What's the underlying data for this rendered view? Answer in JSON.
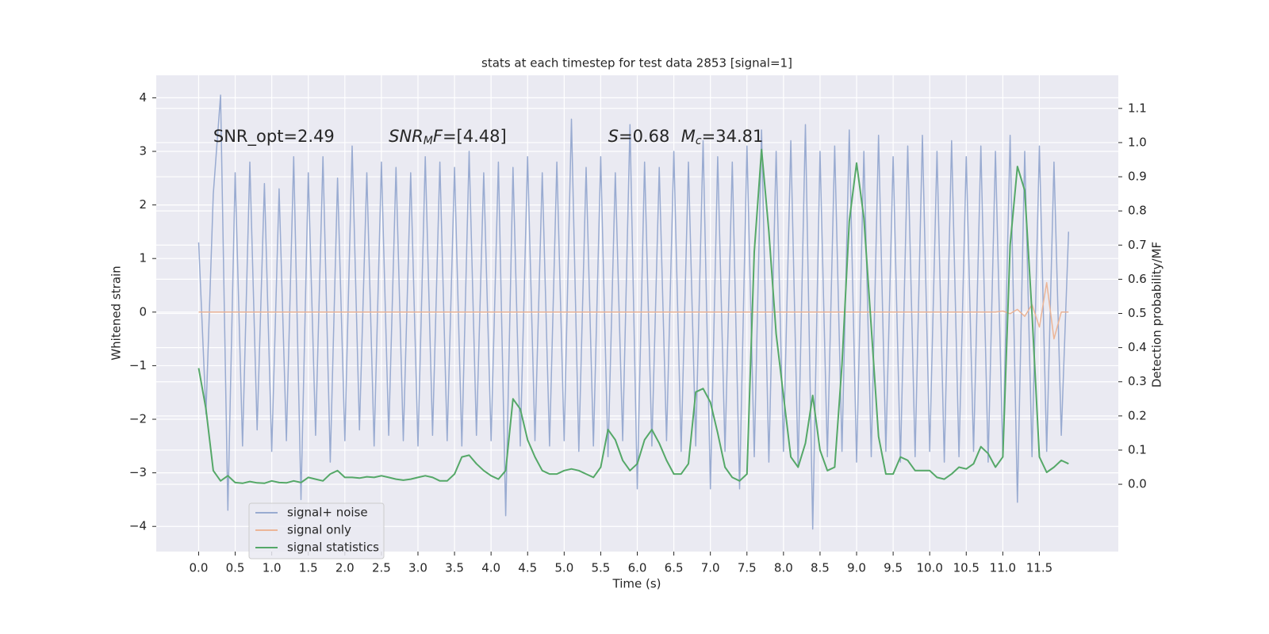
{
  "chart_data": {
    "type": "line",
    "title": "stats at each timestep for test data 2853 [signal=1]",
    "xlabel": "Time (s)",
    "ylabel": "Whitened strain",
    "y2label": "Detection probability/MF",
    "grid": true,
    "legend": "lower left",
    "xlim": [
      -0.58,
      12.58
    ],
    "ylim": [
      -4.47,
      4.42
    ],
    "y2lim": [
      -0.197,
      1.197
    ],
    "xticks": [
      {
        "value": 0,
        "label": "0.0"
      },
      {
        "value": 0.5,
        "label": "0.5"
      },
      {
        "value": 1,
        "label": "1.0"
      },
      {
        "value": 1.5,
        "label": "1.5"
      },
      {
        "value": 2,
        "label": "2.0"
      },
      {
        "value": 2.5,
        "label": "2.5"
      },
      {
        "value": 3,
        "label": "3.0"
      },
      {
        "value": 3.5,
        "label": "3.5"
      },
      {
        "value": 4,
        "label": "4.0"
      },
      {
        "value": 4.5,
        "label": "4.5"
      },
      {
        "value": 5,
        "label": "5.0"
      },
      {
        "value": 5.5,
        "label": "5.5"
      },
      {
        "value": 6,
        "label": "6.0"
      },
      {
        "value": 6.5,
        "label": "6.5"
      },
      {
        "value": 7,
        "label": "7.0"
      },
      {
        "value": 7.5,
        "label": "7.5"
      },
      {
        "value": 8,
        "label": "8.0"
      },
      {
        "value": 8.5,
        "label": "8.5"
      },
      {
        "value": 9,
        "label": "9.0"
      },
      {
        "value": 9.5,
        "label": "9.5"
      },
      {
        "value": 10,
        "label": "10.0"
      },
      {
        "value": 10.5,
        "label": "10.5"
      },
      {
        "value": 11,
        "label": "11.0"
      },
      {
        "value": 11.5,
        "label": "11.5"
      }
    ],
    "yticks": [
      {
        "value": -4,
        "label": "−4"
      },
      {
        "value": -3,
        "label": "−3"
      },
      {
        "value": -2,
        "label": "−2"
      },
      {
        "value": -1,
        "label": "−1"
      },
      0,
      1,
      2,
      3,
      4
    ],
    "y2ticks": [
      {
        "value": 0,
        "label": "0.0"
      },
      0.1,
      0.2,
      0.3,
      0.4,
      0.5,
      0.6,
      0.7,
      0.8,
      0.9,
      {
        "value": 1,
        "label": "1.0"
      },
      1.1
    ],
    "annotations": [
      {
        "x": 0.2,
        "parts": [
          {
            "text": "SNR_opt=2.49"
          }
        ]
      },
      {
        "x": 2.6,
        "parts": [
          {
            "text": "SNR",
            "style": "italic"
          },
          {
            "text": "M",
            "style": "italic-sub"
          },
          {
            "text": "F",
            "style": "italic"
          },
          {
            "text": "=[4.48]"
          }
        ]
      },
      {
        "x": 5.6,
        "parts": [
          {
            "text": "S",
            "style": "italic"
          },
          {
            "text": "=0.68"
          }
        ]
      },
      {
        "x": 6.6,
        "parts": [
          {
            "text": "M",
            "style": "italic"
          },
          {
            "text": "c",
            "style": "italic-sub"
          },
          {
            "text": "=34.81"
          }
        ]
      }
    ],
    "x": [
      0,
      0.1,
      0.2,
      0.3,
      0.4,
      0.5,
      0.6,
      0.7,
      0.8,
      0.9,
      1,
      1.1,
      1.2,
      1.3,
      1.4,
      1.5,
      1.6,
      1.7,
      1.8,
      1.9,
      2,
      2.1,
      2.2,
      2.3,
      2.4,
      2.5,
      2.6,
      2.7,
      2.8,
      2.9,
      3,
      3.1,
      3.2,
      3.3,
      3.4,
      3.5,
      3.6,
      3.7,
      3.8,
      3.9,
      4,
      4.1,
      4.2,
      4.3,
      4.4,
      4.5,
      4.6,
      4.7,
      4.8,
      4.9,
      5,
      5.1,
      5.2,
      5.3,
      5.4,
      5.5,
      5.6,
      5.7,
      5.8,
      5.9,
      6,
      6.1,
      6.2,
      6.3,
      6.4,
      6.5,
      6.6,
      6.7,
      6.8,
      6.9,
      7,
      7.1,
      7.2,
      7.3,
      7.4,
      7.5,
      7.6,
      7.7,
      7.8,
      7.9,
      8,
      8.1,
      8.2,
      8.3,
      8.4,
      8.5,
      8.6,
      8.7,
      8.8,
      8.9,
      9,
      9.1,
      9.2,
      9.3,
      9.4,
      9.5,
      9.6,
      9.7,
      9.8,
      9.9,
      10,
      10.1,
      10.2,
      10.3,
      10.4,
      10.5,
      10.6,
      10.7,
      10.8,
      10.9,
      11,
      11.1,
      11.2,
      11.3,
      11.4,
      11.5,
      11.6,
      11.7,
      11.8,
      11.9
    ],
    "series": [
      {
        "name": "signal+ noise",
        "color": "#99abd1",
        "values": [
          1.3,
          -1.9,
          2.2,
          4.05,
          -3.7,
          2.6,
          -2.5,
          2.8,
          -2.2,
          2.4,
          -2.6,
          2.3,
          -2.4,
          2.9,
          -3.5,
          2.6,
          -2.3,
          2.9,
          -2.8,
          2.5,
          -2.4,
          3.1,
          -2.2,
          2.6,
          -2.5,
          2.8,
          -2.3,
          2.7,
          -2.4,
          2.6,
          -2.5,
          2.9,
          -2.3,
          2.8,
          -2.4,
          2.7,
          -2.5,
          3.0,
          -2.3,
          2.6,
          -2.4,
          2.8,
          -3.8,
          2.7,
          -2.5,
          2.9,
          -2.4,
          2.6,
          -2.5,
          2.8,
          -2.4,
          3.6,
          -2.6,
          2.7,
          -2.5,
          2.9,
          -2.7,
          2.6,
          -2.4,
          3.5,
          -3.3,
          2.8,
          -2.5,
          2.7,
          -2.4,
          3.0,
          -2.6,
          2.8,
          -2.5,
          3.2,
          -3.3,
          2.9,
          -2.6,
          2.8,
          -3.3,
          3.1,
          -2.7,
          3.4,
          -2.8,
          3.0,
          -2.6,
          3.2,
          -2.9,
          3.5,
          -4.05,
          3.0,
          -2.7,
          3.1,
          -2.6,
          3.4,
          -2.8,
          3.0,
          -2.7,
          3.3,
          -2.6,
          2.9,
          -2.8,
          3.1,
          -2.7,
          3.3,
          -2.6,
          3.0,
          -2.8,
          3.2,
          -2.7,
          2.9,
          -2.6,
          3.1,
          -2.8,
          3.0,
          -2.7,
          3.3,
          -3.55,
          3.0,
          -2.7,
          3.1,
          -2.6,
          2.8,
          -2.3,
          1.5
        ]
      },
      {
        "name": "signal only",
        "color": "#ecb597",
        "values": [
          0,
          0,
          0,
          0,
          0,
          0,
          0,
          0,
          0,
          0,
          0,
          0,
          0,
          0,
          0,
          0,
          0,
          0,
          0,
          0,
          0,
          0,
          0,
          0,
          0,
          0,
          0,
          0,
          0,
          0,
          0,
          0,
          0,
          0,
          0,
          0,
          0,
          0,
          0,
          0,
          0,
          0,
          0,
          0,
          0,
          0,
          0,
          0,
          0,
          0,
          0,
          0,
          0,
          0,
          0,
          0,
          0,
          0,
          0,
          0,
          0,
          0,
          0,
          0,
          0,
          0,
          0,
          0,
          0,
          0,
          0,
          0,
          0,
          0,
          0,
          0,
          0,
          0,
          0,
          0,
          0,
          0,
          0,
          0,
          0,
          0,
          0,
          0,
          0,
          0,
          0,
          0,
          0,
          0,
          0,
          0,
          0,
          0,
          0,
          0,
          0,
          0,
          0,
          0,
          0,
          0,
          0,
          0,
          0,
          0,
          0.02,
          -0.03,
          0.05,
          -0.08,
          0.14,
          -0.28,
          0.55,
          -0.5,
          0,
          0
        ]
      },
      {
        "name": "signal statistics",
        "color": "#55a868",
        "axis": "y2",
        "values": [
          0.34,
          0.22,
          0.04,
          0.01,
          0.025,
          0.005,
          0.003,
          0.008,
          0.004,
          0.003,
          0.01,
          0.005,
          0.004,
          0.01,
          0.005,
          0.02,
          0.015,
          0.01,
          0.03,
          0.04,
          0.02,
          0.02,
          0.018,
          0.022,
          0.02,
          0.025,
          0.02,
          0.015,
          0.012,
          0.015,
          0.02,
          0.025,
          0.02,
          0.01,
          0.01,
          0.03,
          0.08,
          0.085,
          0.06,
          0.04,
          0.025,
          0.015,
          0.04,
          0.25,
          0.22,
          0.13,
          0.08,
          0.04,
          0.03,
          0.03,
          0.04,
          0.045,
          0.04,
          0.03,
          0.02,
          0.05,
          0.16,
          0.13,
          0.07,
          0.04,
          0.06,
          0.13,
          0.16,
          0.12,
          0.07,
          0.03,
          0.03,
          0.06,
          0.27,
          0.28,
          0.24,
          0.15,
          0.05,
          0.02,
          0.01,
          0.03,
          0.68,
          0.98,
          0.74,
          0.44,
          0.26,
          0.08,
          0.05,
          0.12,
          0.26,
          0.1,
          0.04,
          0.05,
          0.35,
          0.77,
          0.94,
          0.78,
          0.46,
          0.14,
          0.03,
          0.03,
          0.08,
          0.07,
          0.04,
          0.04,
          0.04,
          0.02,
          0.015,
          0.03,
          0.05,
          0.045,
          0.06,
          0.11,
          0.09,
          0.05,
          0.08,
          0.7,
          0.93,
          0.86,
          0.5,
          0.08,
          0.035,
          0.05,
          0.07,
          0.06
        ]
      }
    ]
  }
}
